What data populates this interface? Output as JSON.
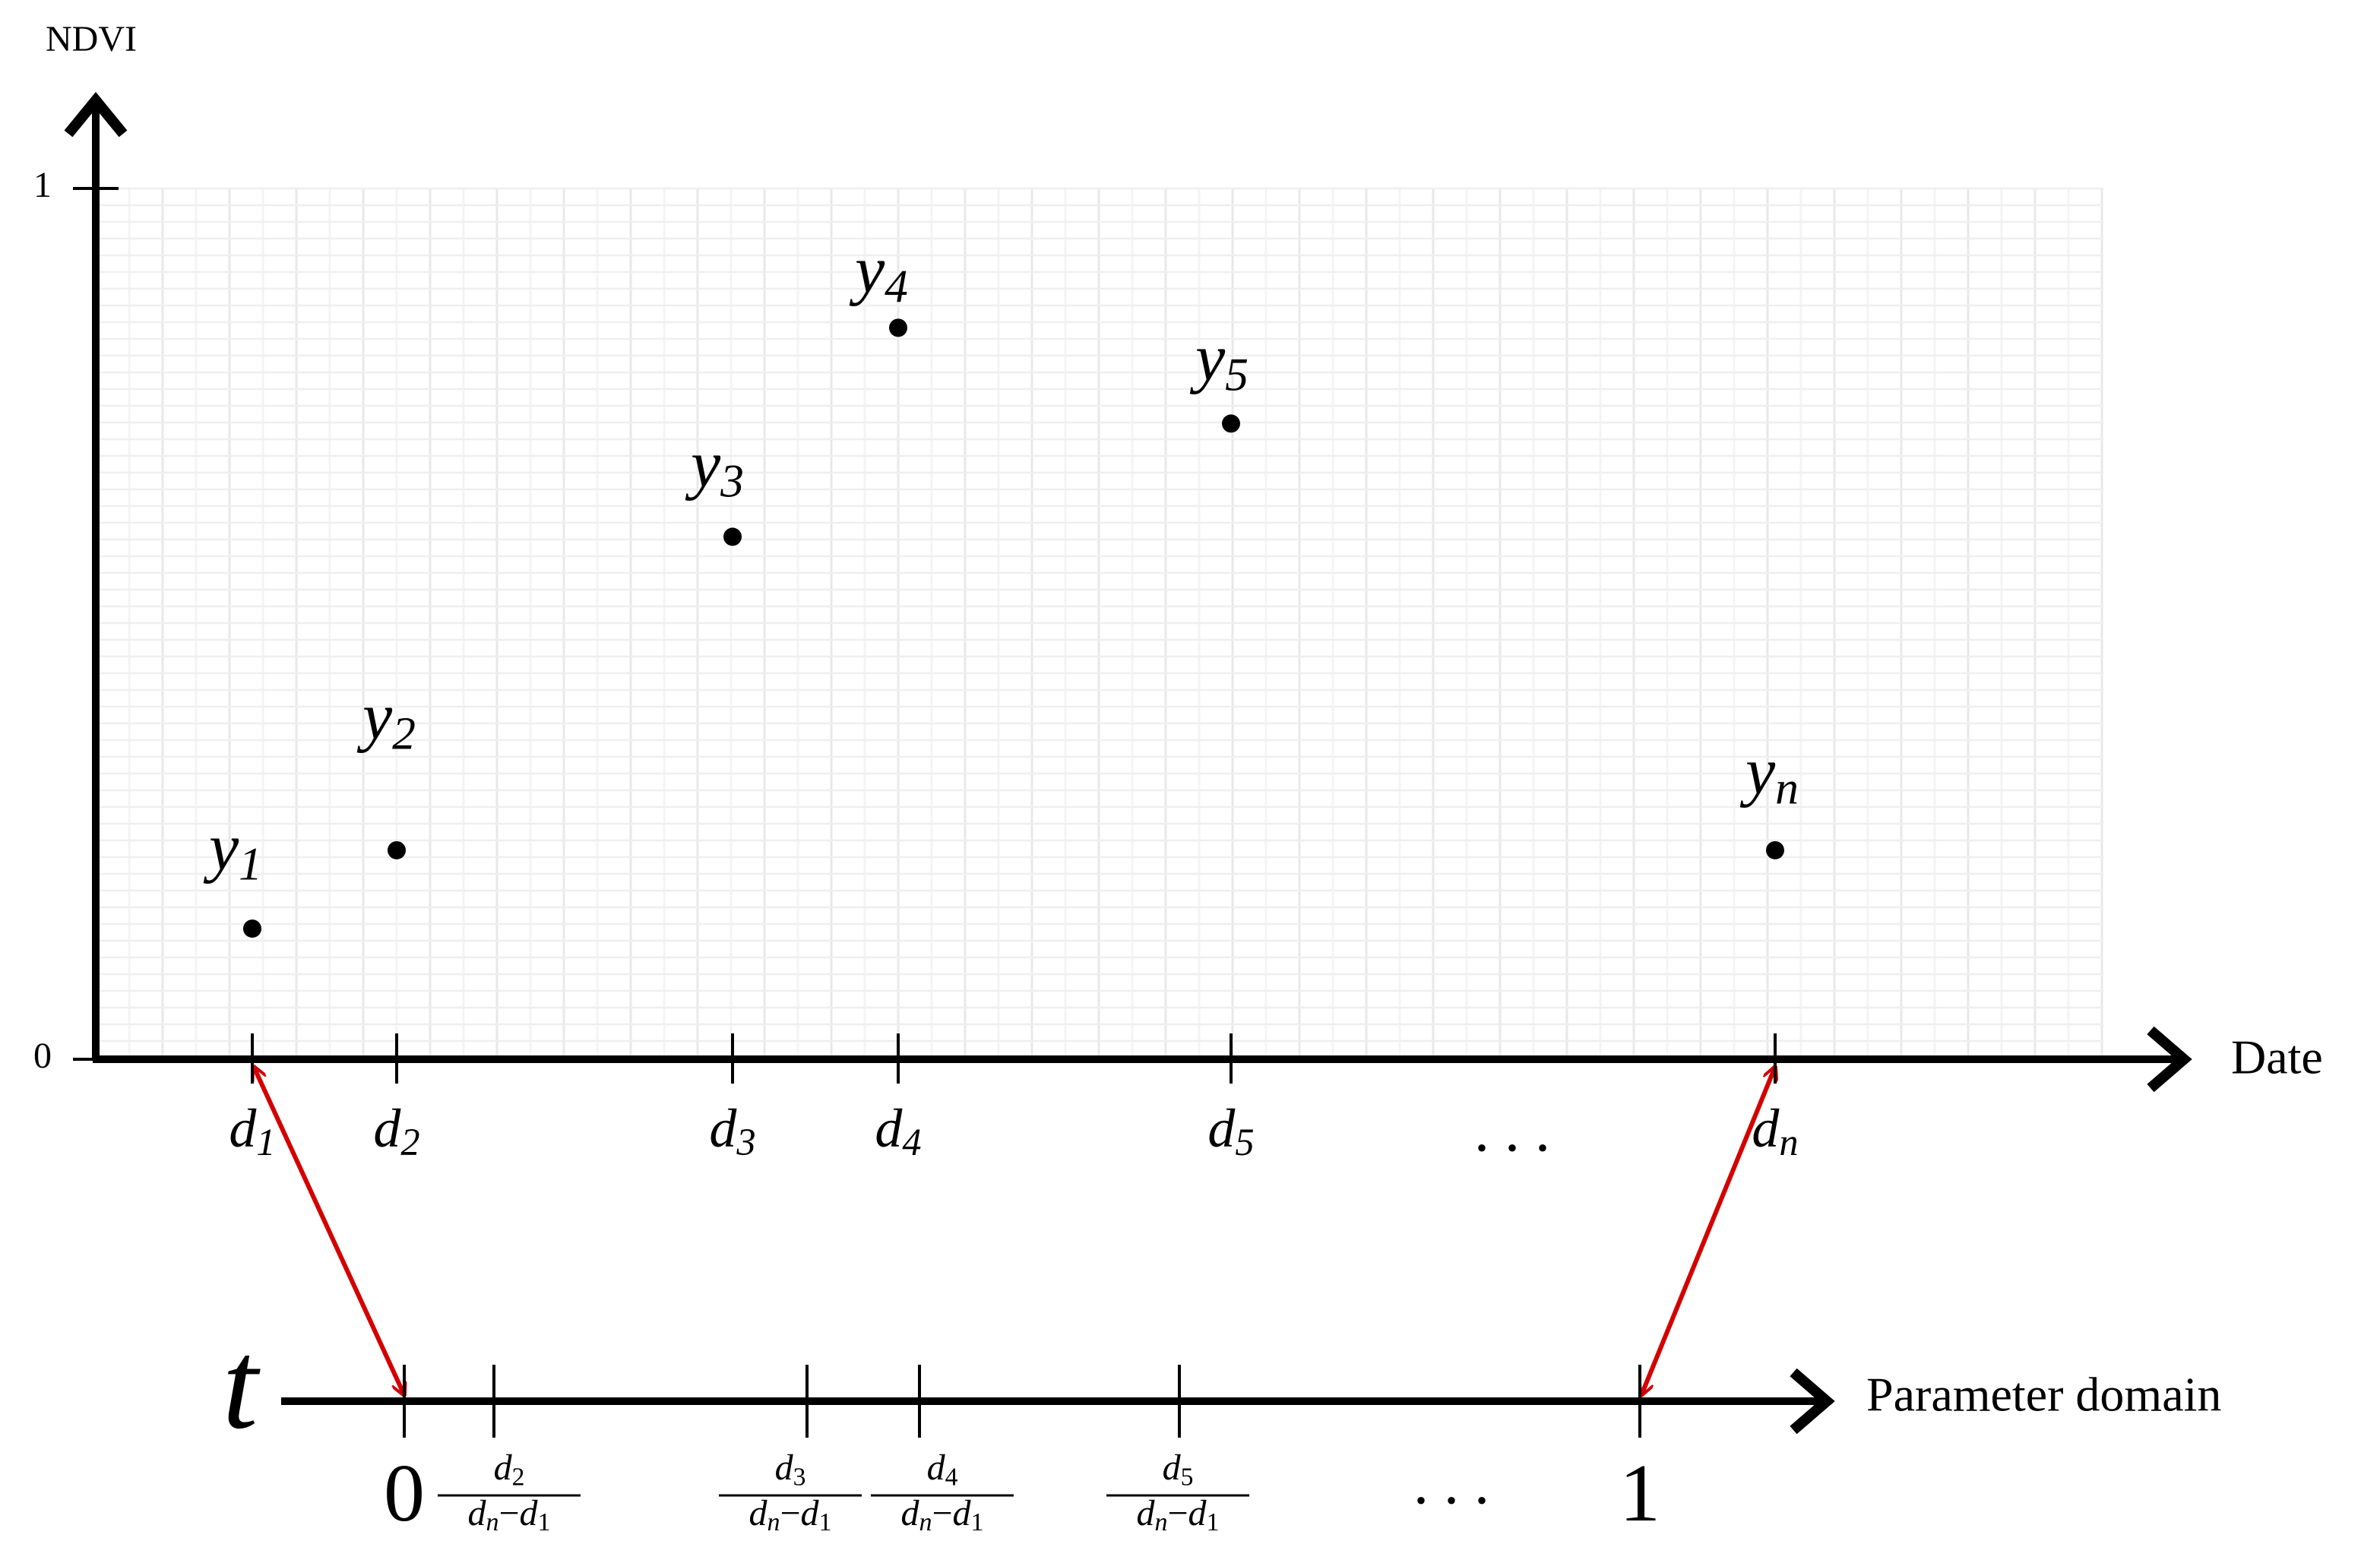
{
  "y_axis": {
    "label": "NDVI",
    "ticks": [
      0,
      1
    ]
  },
  "x_axis": {
    "label": "Date"
  },
  "points": [
    {
      "name": "y",
      "sub": "1",
      "value": 0.15
    },
    {
      "name": "y",
      "sub": "2",
      "value": 0.24
    },
    {
      "name": "y",
      "sub": "3",
      "value": 0.6
    },
    {
      "name": "y",
      "sub": "4",
      "value": 0.84
    },
    {
      "name": "y",
      "sub": "5",
      "value": 0.73
    },
    {
      "name": "y",
      "sub": "n",
      "value": 0.24
    }
  ],
  "dates": [
    {
      "name": "d",
      "sub": "1"
    },
    {
      "name": "d",
      "sub": "2"
    },
    {
      "name": "d",
      "sub": "3"
    },
    {
      "name": "d",
      "sub": "4"
    },
    {
      "name": "d",
      "sub": "5"
    },
    {
      "name": "d",
      "sub": "n"
    }
  ],
  "date_ellipsis": ". . .",
  "param_axis": {
    "symbol": "t",
    "label": "Parameter domain",
    "start": "0",
    "end": "1",
    "ellipsis": ". . .",
    "fractions": [
      {
        "num": "d",
        "num_sub": "2",
        "den_a": "d",
        "den_a_sub": "n",
        "op": "−",
        "den_b": "d",
        "den_b_sub": "1"
      },
      {
        "num": "d",
        "num_sub": "3",
        "den_a": "d",
        "den_a_sub": "n",
        "op": "−",
        "den_b": "d",
        "den_b_sub": "1"
      },
      {
        "num": "d",
        "num_sub": "4",
        "den_a": "d",
        "den_a_sub": "n",
        "op": "−",
        "den_b": "d",
        "den_b_sub": "1"
      },
      {
        "num": "d",
        "num_sub": "5",
        "den_a": "d",
        "den_a_sub": "n",
        "op": "−",
        "den_b": "d",
        "den_b_sub": "1"
      }
    ]
  }
}
